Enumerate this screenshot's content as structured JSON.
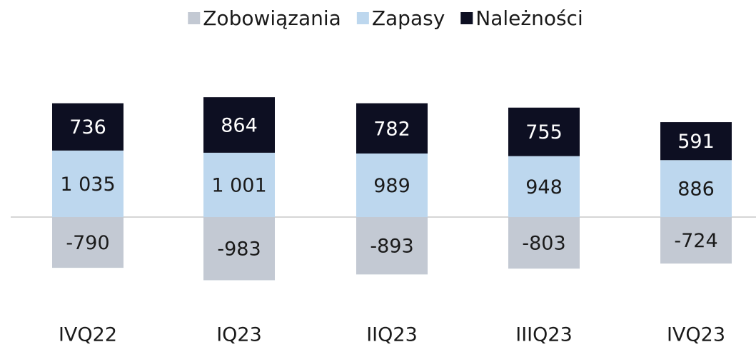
{
  "chart_data": {
    "type": "stacked_bar",
    "categories": [
      "IVQ22",
      "IQ23",
      "IIQ23",
      "IIIQ23",
      "IVQ23"
    ],
    "series": [
      {
        "name": "Zobowiązania",
        "color": "#c3c9d3",
        "text_color": "#1a1a1a",
        "values": [
          -790,
          -983,
          -893,
          -803,
          -724
        ]
      },
      {
        "name": "Zapasy",
        "color": "#bdd7ee",
        "text_color": "#1a1a1a",
        "values": [
          1035,
          1001,
          989,
          948,
          886
        ],
        "value_labels": [
          "1 035",
          "1 001",
          "989",
          "948",
          "886"
        ]
      },
      {
        "name": "Należności",
        "color": "#0d0f22",
        "text_color": "#ffffff",
        "values": [
          736,
          864,
          782,
          755,
          591
        ]
      }
    ],
    "ylim": [
      -1500,
      2500
    ],
    "legend": "top"
  }
}
